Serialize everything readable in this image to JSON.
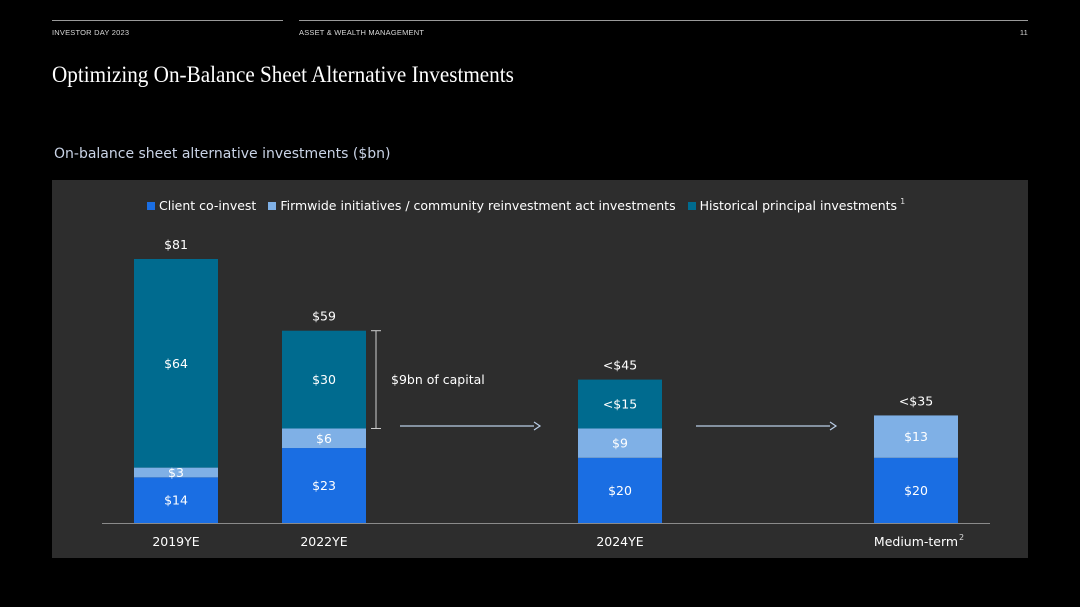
{
  "header": {
    "left": "INVESTOR DAY 2023",
    "center": "ASSET & WEALTH MANAGEMENT",
    "page_number": "11"
  },
  "title": "Optimizing On-Balance Sheet Alternative Investments",
  "chart_data": {
    "type": "bar",
    "stacked": true,
    "title": "On-balance sheet alternative investments ($bn)",
    "categories": [
      "2019YE",
      "2022YE",
      "2024YE",
      "Medium-term"
    ],
    "category_footnotes": [
      "",
      "",
      "",
      "2"
    ],
    "series": [
      {
        "name": "Client co-invest",
        "color": "#1a6ee3",
        "values": [
          14,
          23,
          20,
          20
        ],
        "labels": [
          "$14",
          "$23",
          "$20",
          "$20"
        ]
      },
      {
        "name": "Firmwide initiatives / community reinvestment act investments",
        "color": "#7fb0e6",
        "values": [
          3,
          6,
          9,
          13
        ],
        "labels": [
          "$3",
          "$6",
          "$9",
          "$13"
        ]
      },
      {
        "name": "Historical principal investments",
        "color": "#006b8f",
        "values": [
          64,
          30,
          15,
          0
        ],
        "labels": [
          "$64",
          "$30",
          "<$15",
          ""
        ],
        "legend_footnote": "1"
      }
    ],
    "totals": [
      "$81",
      "$59",
      "<$45",
      "<$35"
    ],
    "annotations": {
      "bracket_label": "$9bn of capital"
    },
    "ylim": [
      0,
      81
    ],
    "legend_position": "top",
    "grid": false
  }
}
